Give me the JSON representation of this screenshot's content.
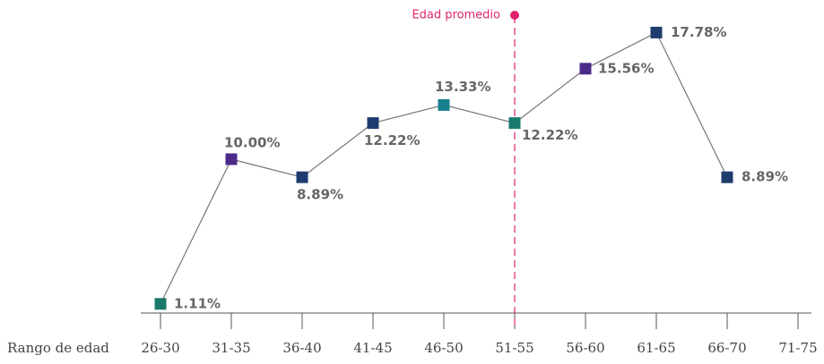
{
  "chart_data": {
    "type": "line",
    "x_label": "Rango de edad",
    "categories": [
      "26-30",
      "31-35",
      "36-40",
      "41-45",
      "46-50",
      "51-55",
      "56-60",
      "61-65",
      "66-70",
      "71-75"
    ],
    "series": [
      {
        "color": "#777777",
        "values": [
          1.11,
          10.0,
          8.89,
          12.22,
          13.33,
          12.22,
          15.56,
          17.78,
          8.89,
          null
        ],
        "value_labels": [
          "1.11%",
          "10.00%",
          "8.89%",
          "12.22%",
          "13.33%",
          "12.22%",
          "15.56%",
          "17.78%",
          "8.89%",
          null
        ],
        "marker_colors": [
          "#1b7a6c",
          "#4b2a8a",
          "#1f3c6e",
          "#1f3c6e",
          "#17808e",
          "#1b7a6c",
          "#4b2a8a",
          "#1f3c6e",
          "#1f3c6e",
          null
        ]
      }
    ],
    "ylim": [
      0,
      20
    ],
    "annotation": {
      "text": "Edad promedio",
      "category": "51-55",
      "color": "#e0226e"
    }
  }
}
